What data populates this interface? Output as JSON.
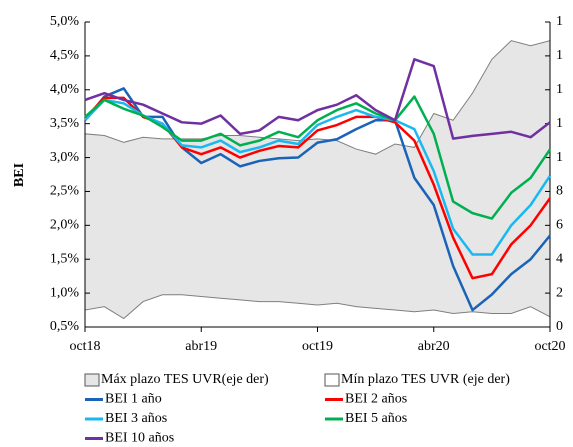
{
  "chart_data": {
    "type": "line",
    "y_label": "BEI",
    "categories": [
      "oct18",
      null,
      null,
      null,
      null,
      null,
      "abr19",
      null,
      null,
      null,
      null,
      null,
      "oct19",
      null,
      null,
      null,
      null,
      null,
      "abr20",
      null,
      null,
      null,
      null,
      null,
      "oct20"
    ],
    "ylim": [
      0.5,
      5.0
    ],
    "yticks": [
      {
        "value": 0.5,
        "label": "0,5%"
      },
      {
        "value": 1.0,
        "label": "1,0%"
      },
      {
        "value": 1.5,
        "label": "1,5%"
      },
      {
        "value": 2.0,
        "label": "2,0%"
      },
      {
        "value": 2.5,
        "label": "2,5%"
      },
      {
        "value": 3.0,
        "label": "3,0%"
      },
      {
        "value": 3.5,
        "label": "3,5%"
      },
      {
        "value": 4.0,
        "label": "4,0%"
      },
      {
        "value": 4.5,
        "label": "4,5%"
      },
      {
        "value": 5.0,
        "label": "5,0%"
      }
    ],
    "y2lim": [
      0,
      18
    ],
    "y2ticks": [
      0,
      2,
      4,
      6,
      8,
      {
        "value": 10,
        "label": "1"
      },
      {
        "value": 12,
        "label": "1"
      },
      {
        "value": 14,
        "label": "1"
      },
      {
        "value": 16,
        "label": "1"
      },
      {
        "value": 18,
        "label": "1"
      }
    ],
    "series": [
      {
        "name": "Máx plazo TES UVR(eje der)",
        "style": "area",
        "axis": "y2",
        "color": "#e6e6e6",
        "values": [
          11.4,
          11.3,
          10.9,
          11.2,
          11.1,
          11.1,
          11.1,
          11.3,
          11.3,
          11.2,
          11.1,
          11.0,
          11.1,
          11.0,
          10.5,
          10.2,
          10.8,
          10.6,
          12.6,
          12.2,
          13.8,
          15.8,
          16.9,
          16.6,
          16.9
        ]
      },
      {
        "name": "Mín plazo TES UVR (eje der)",
        "style": "area",
        "axis": "y2",
        "color": "#ffffff",
        "values": [
          1.0,
          1.2,
          0.5,
          1.5,
          1.9,
          1.9,
          1.8,
          1.7,
          1.6,
          1.5,
          1.5,
          1.4,
          1.3,
          1.4,
          1.2,
          1.1,
          1.0,
          0.9,
          1.0,
          0.8,
          0.9,
          0.8,
          0.8,
          1.2,
          0.6
        ]
      },
      {
        "name": "BEI 1 año",
        "color": "#1a63b7",
        "values": [
          3.55,
          3.9,
          4.02,
          3.6,
          3.6,
          3.15,
          2.92,
          3.05,
          2.87,
          2.95,
          2.99,
          3.0,
          3.22,
          3.27,
          3.42,
          3.55,
          3.55,
          2.7,
          2.3,
          1.4,
          0.75,
          0.98,
          1.28,
          1.5,
          1.85
        ]
      },
      {
        "name": "BEI 2 años",
        "color": "#ff0000",
        "values": [
          3.58,
          3.88,
          3.88,
          3.6,
          3.5,
          3.15,
          3.05,
          3.15,
          3.0,
          3.1,
          3.17,
          3.15,
          3.4,
          3.48,
          3.6,
          3.6,
          3.52,
          3.25,
          2.6,
          1.82,
          1.22,
          1.28,
          1.72,
          2.0,
          2.4
        ]
      },
      {
        "name": "BEI 3 años",
        "color": "#1ab8f0",
        "values": [
          3.55,
          3.85,
          3.8,
          3.62,
          3.5,
          3.18,
          3.15,
          3.25,
          3.08,
          3.15,
          3.25,
          3.2,
          3.48,
          3.6,
          3.7,
          3.6,
          3.55,
          3.42,
          2.8,
          1.95,
          1.57,
          1.57,
          2.0,
          2.3,
          2.73
        ]
      },
      {
        "name": "BEI 5 años",
        "color": "#00b050",
        "values": [
          3.6,
          3.85,
          3.72,
          3.62,
          3.45,
          3.25,
          3.25,
          3.35,
          3.18,
          3.25,
          3.38,
          3.3,
          3.55,
          3.7,
          3.8,
          3.65,
          3.55,
          3.9,
          3.35,
          2.35,
          2.18,
          2.1,
          2.48,
          2.7,
          3.12
        ]
      },
      {
        "name": "BEI 10 años",
        "color": "#7030a0",
        "values": [
          3.85,
          3.95,
          3.85,
          3.78,
          3.65,
          3.52,
          3.5,
          3.62,
          3.35,
          3.4,
          3.6,
          3.55,
          3.7,
          3.78,
          3.92,
          3.7,
          3.55,
          4.45,
          4.35,
          3.28,
          3.32,
          3.35,
          3.38,
          3.3,
          3.52
        ]
      }
    ]
  }
}
